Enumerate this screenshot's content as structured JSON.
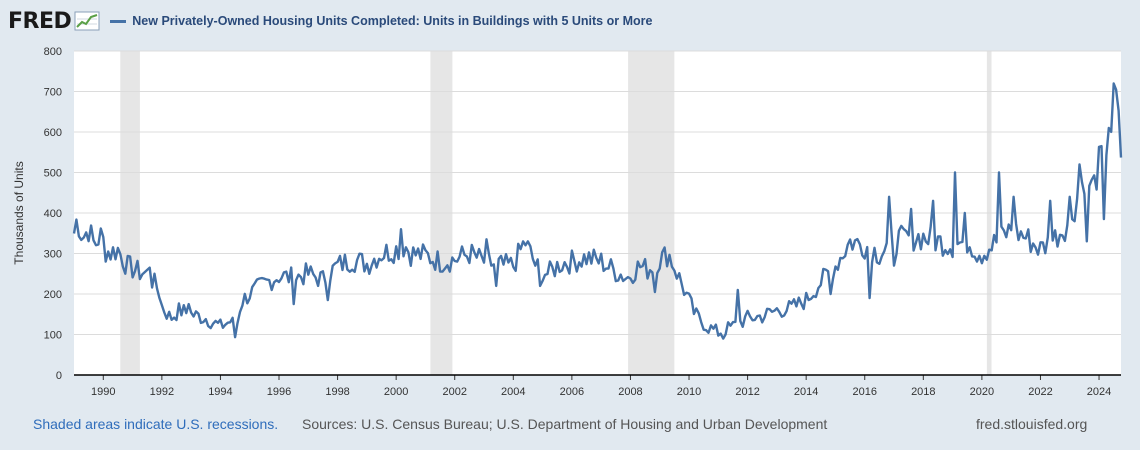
{
  "header": {
    "logo": "FRED",
    "series_title": "New Privately-Owned Housing Units Completed: Units in Buildings with 5 Units or More"
  },
  "footer": {
    "recession_note": "Shaded areas indicate U.S. recessions.",
    "sources": "Sources: U.S. Census Bureau; U.S. Department of Housing and Urban Development",
    "site": "fred.stlouisfed.org"
  },
  "colors": {
    "line": "#4572a7",
    "recession": "#e6e6e6",
    "background": "#e1e9f0"
  },
  "chart_data": {
    "type": "line",
    "title": "New Privately-Owned Housing Units Completed: Units in Buildings with 5 Units or More",
    "ylabel": "Thousands of Units",
    "xlabel": "",
    "ylim": [
      0,
      800
    ],
    "xlim": [
      1989.0,
      2024.75
    ],
    "yticks": [
      0,
      100,
      200,
      300,
      400,
      500,
      600,
      700,
      800
    ],
    "xticks": [
      "1990",
      "1992",
      "1994",
      "1996",
      "1998",
      "2000",
      "2002",
      "2004",
      "2006",
      "2008",
      "2010",
      "2012",
      "2014",
      "2016",
      "2018",
      "2020",
      "2022",
      "2024"
    ],
    "grid": true,
    "recessions": [
      [
        1990.58,
        1991.25
      ],
      [
        2001.17,
        2001.92
      ],
      [
        2007.92,
        2009.5
      ],
      [
        2020.17,
        2020.33
      ]
    ],
    "series": [
      {
        "name": "New Privately-Owned Housing Units Completed: Units in Buildings with 5 Units or More",
        "anchors": [
          [
            1989.0,
            350
          ],
          [
            1989.1,
            385
          ],
          [
            1989.3,
            340
          ],
          [
            1989.5,
            360
          ],
          [
            1989.7,
            320
          ],
          [
            1989.9,
            345
          ],
          [
            1990.2,
            300
          ],
          [
            1990.5,
            310
          ],
          [
            1990.8,
            270
          ],
          [
            1991.2,
            255
          ],
          [
            1991.5,
            250
          ],
          [
            1991.9,
            210
          ],
          [
            1992.0,
            170
          ],
          [
            1992.3,
            140
          ],
          [
            1992.6,
            160
          ],
          [
            1993.0,
            150
          ],
          [
            1993.5,
            140
          ],
          [
            1994.0,
            120
          ],
          [
            1994.4,
            135
          ],
          [
            1994.5,
            95
          ],
          [
            1994.7,
            180
          ],
          [
            1995.0,
            200
          ],
          [
            1995.5,
            225
          ],
          [
            1996.0,
            245
          ],
          [
            1996.5,
            240
          ],
          [
            1997.0,
            250
          ],
          [
            1997.5,
            235
          ],
          [
            1998.0,
            270
          ],
          [
            1998.5,
            285
          ],
          [
            1999.0,
            275
          ],
          [
            1999.5,
            300
          ],
          [
            2000.0,
            310
          ],
          [
            2000.3,
            320
          ],
          [
            2000.5,
            300
          ],
          [
            2001.0,
            295
          ],
          [
            2001.5,
            280
          ],
          [
            2002.0,
            285
          ],
          [
            2002.5,
            300
          ],
          [
            2003.0,
            280
          ],
          [
            2003.5,
            270
          ],
          [
            2004.0,
            270
          ],
          [
            2004.4,
            330
          ],
          [
            2004.8,
            265
          ],
          [
            2005.2,
            250
          ],
          [
            2005.6,
            275
          ],
          [
            2006.0,
            280
          ],
          [
            2006.5,
            290
          ],
          [
            2007.0,
            280
          ],
          [
            2007.5,
            255
          ],
          [
            2007.9,
            240
          ],
          [
            2008.3,
            270
          ],
          [
            2008.6,
            260
          ],
          [
            2009.0,
            285
          ],
          [
            2009.3,
            300
          ],
          [
            2009.6,
            250
          ],
          [
            2009.9,
            200
          ],
          [
            2010.2,
            150
          ],
          [
            2010.6,
            120
          ],
          [
            2011.0,
            105
          ],
          [
            2011.5,
            120
          ],
          [
            2012.0,
            140
          ],
          [
            2012.5,
            145
          ],
          [
            2013.0,
            160
          ],
          [
            2013.5,
            165
          ],
          [
            2014.0,
            185
          ],
          [
            2014.5,
            230
          ],
          [
            2015.0,
            270
          ],
          [
            2015.5,
            330
          ],
          [
            2016.0,
            320
          ],
          [
            2016.5,
            300
          ],
          [
            2017.0,
            330
          ],
          [
            2017.5,
            340
          ],
          [
            2018.0,
            340
          ],
          [
            2018.5,
            330
          ],
          [
            2019.0,
            320
          ],
          [
            2019.5,
            330
          ],
          [
            2020.0,
            300
          ],
          [
            2020.5,
            330
          ],
          [
            2021.0,
            360
          ],
          [
            2021.5,
            340
          ],
          [
            2022.0,
            310
          ],
          [
            2022.5,
            340
          ],
          [
            2023.0,
            380
          ],
          [
            2023.5,
            490
          ],
          [
            2023.8,
            460
          ],
          [
            2024.0,
            520
          ],
          [
            2024.2,
            560
          ],
          [
            2024.4,
            600
          ],
          [
            2024.55,
            710
          ],
          [
            2024.75,
            545
          ]
        ],
        "spikes": [
          [
            1990.05,
            280
          ],
          [
            1991.6,
            265
          ],
          [
            1992.95,
            175
          ],
          [
            1996.5,
            175
          ],
          [
            1997.7,
            185
          ],
          [
            1999.1,
            250
          ],
          [
            2000.15,
            360
          ],
          [
            2003.05,
            335
          ],
          [
            2003.4,
            220
          ],
          [
            2004.95,
            220
          ],
          [
            2008.8,
            205
          ],
          [
            2011.7,
            210
          ],
          [
            2011.2,
            90
          ],
          [
            2014.8,
            200
          ],
          [
            2016.2,
            190
          ],
          [
            2016.8,
            440
          ],
          [
            2017.0,
            270
          ],
          [
            2017.6,
            410
          ],
          [
            2018.3,
            430
          ],
          [
            2019.05,
            500
          ],
          [
            2019.45,
            400
          ],
          [
            2019.8,
            280
          ],
          [
            2020.6,
            500
          ],
          [
            2021.05,
            440
          ],
          [
            2022.3,
            430
          ],
          [
            2023.0,
            440
          ],
          [
            2023.35,
            520
          ],
          [
            2023.6,
            330
          ],
          [
            2024.3,
            610
          ],
          [
            2024.15,
            385
          ]
        ]
      }
    ]
  }
}
